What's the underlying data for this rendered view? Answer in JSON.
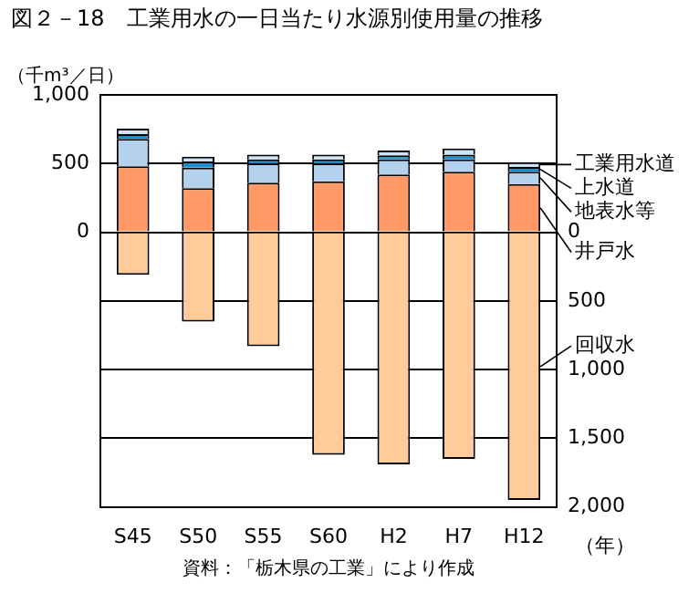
{
  "chart_data": {
    "type": "bar",
    "title": "図２－18　工業用水の一日当たり水源別使用量の推移",
    "ylabel": "（千m³／日）",
    "xlabel": "（年）",
    "annotations": [
      "資料：「栃木県の工業」により作成"
    ],
    "categories": [
      "S45",
      "S50",
      "S55",
      "S60",
      "H2",
      "H7",
      "H12"
    ],
    "stacked": true,
    "legend": "right",
    "grid": "y",
    "ylim": [
      -2000,
      1000
    ],
    "yticks": [
      0,
      500,
      {
        "value": 1000,
        "label": "1,000"
      }
    ],
    "y2lim": [
      2000,
      -1000
    ],
    "y2ticks": [
      0,
      500,
      {
        "value": 1000,
        "label": "1,000"
      },
      {
        "value": 1500,
        "label": "1,500"
      },
      {
        "value": 2000,
        "label": "2,000"
      }
    ],
    "series": [
      {
        "name": "井戸水",
        "color": "#ff9966",
        "values": [
          480,
          320,
          360,
          370,
          420,
          440,
          350
        ]
      },
      {
        "name": "地表水等",
        "color": "#b4d2ee",
        "values": [
          200,
          150,
          140,
          130,
          110,
          90,
          90
        ]
      },
      {
        "name": "上水道",
        "color": "#1a8fd0",
        "values": [
          35,
          45,
          30,
          30,
          30,
          35,
          35
        ]
      },
      {
        "name": "工業用水道",
        "color": "#cce6f6",
        "values": [
          40,
          35,
          35,
          35,
          35,
          45,
          35
        ]
      },
      {
        "name": "回収水",
        "color": "#ffcc99",
        "axis": "y2",
        "values": [
          310,
          650,
          830,
          1620,
          1690,
          1650,
          1950
        ]
      }
    ]
  }
}
